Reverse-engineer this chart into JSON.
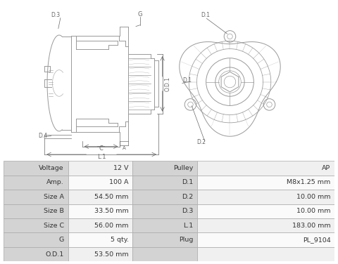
{
  "bg_color": "#ffffff",
  "table_header_bg": "#d3d3d3",
  "table_row_bg_light": "#f0f0f0",
  "table_row_bg_white": "#fafafa",
  "table_border": "#aaaaaa",
  "drawing_color": "#999999",
  "label_color": "#666666",
  "table_data": [
    [
      "Voltage",
      "12 V",
      "Pulley",
      "AP"
    ],
    [
      "Amp.",
      "100 A",
      "D.1",
      "M8x1.25 mm"
    ],
    [
      "Size A",
      "54.50 mm",
      "D.2",
      "10.00 mm"
    ],
    [
      "Size B",
      "33.50 mm",
      "D.3",
      "10.00 mm"
    ],
    [
      "Size C",
      "56.00 mm",
      "L.1",
      "183.00 mm"
    ],
    [
      "G",
      "5 qty.",
      "Plug",
      "PL_9104"
    ],
    [
      "O.D.1",
      "53.50 mm",
      "",
      ""
    ]
  ]
}
